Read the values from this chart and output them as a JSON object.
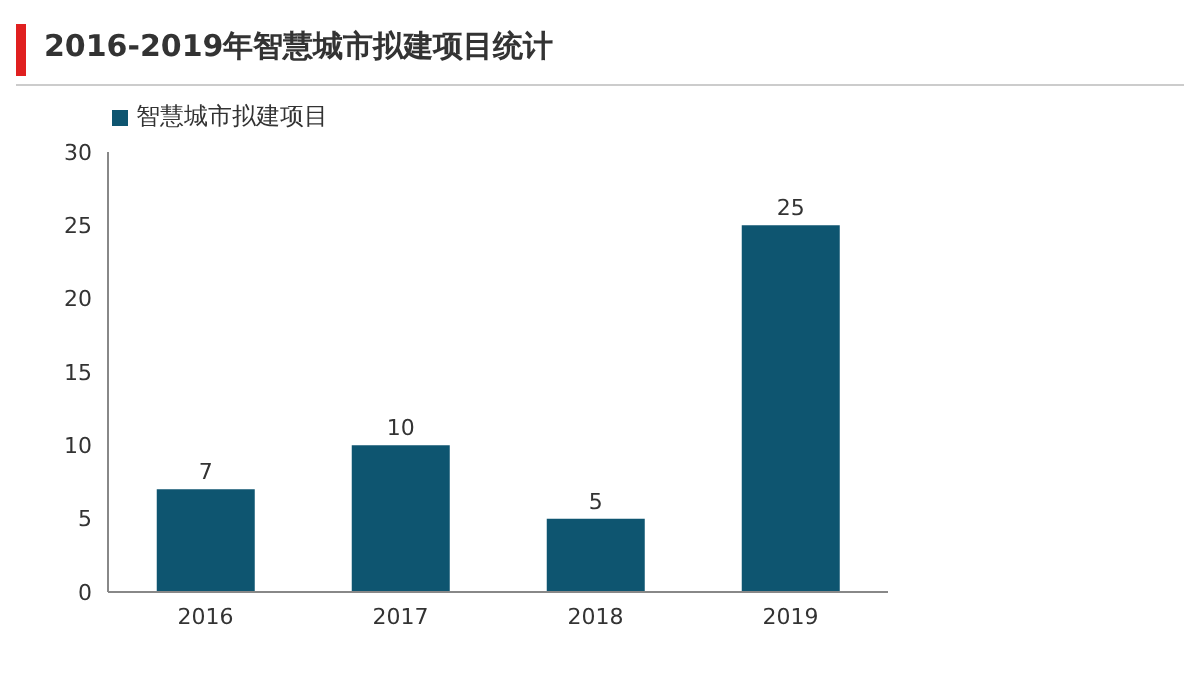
{
  "chart_data": {
    "type": "bar",
    "title": "2016-2019年智慧城市拟建项目统计",
    "categories": [
      "2016",
      "2017",
      "2018",
      "2019"
    ],
    "series": [
      {
        "name": "智慧城市拟建项目",
        "color": "#0e5570",
        "values": [
          7,
          10,
          5,
          25
        ]
      }
    ],
    "ylim": [
      0,
      30
    ],
    "yticks": [
      0,
      5,
      10,
      15,
      20,
      25,
      30
    ],
    "legend": "top left",
    "data_labels": true
  }
}
